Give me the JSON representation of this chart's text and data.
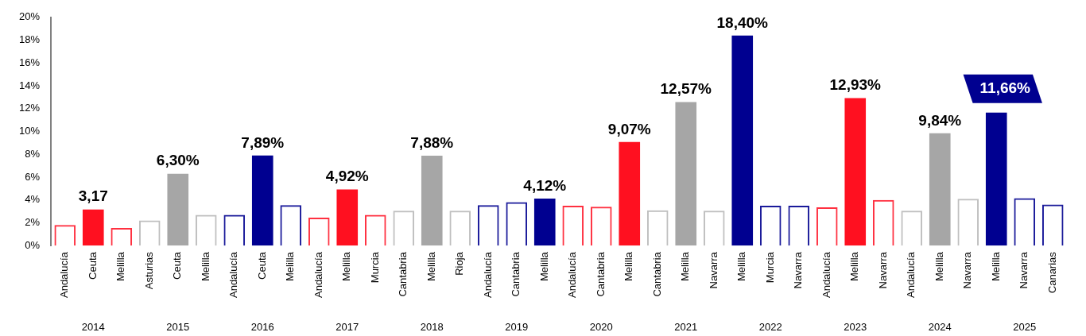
{
  "chart_data": {
    "type": "bar",
    "stacked": true,
    "categories": [
      "Andalucía",
      "Ceuta",
      "Melilla",
      "Asturias",
      "Ceuta",
      "Melilla",
      "Andalucía",
      "Ceuta",
      "Melilla",
      "Andalucía",
      "Melilla",
      "Murcia",
      "Cantabria",
      "Melilla",
      "Rioja",
      "Andalucía",
      "Cantabria",
      "Melilla",
      "Andalucía",
      "Cantabria",
      "Melilla",
      "Cantabria",
      "Melilla",
      "Navarra",
      "Melilla",
      "Murcia",
      "Navarra",
      "Andalucía",
      "Melilla",
      "Navarra",
      "Andalucía",
      "Melilla",
      "Navarra",
      "Melilla",
      "Navarra",
      "Canarias"
    ],
    "series": [
      {
        "values": [
          null,
          3.17,
          null,
          null,
          6.3,
          null,
          null,
          7.89,
          null,
          null,
          4.92,
          null,
          null,
          7.88,
          null,
          null,
          null,
          4.12,
          null,
          null,
          9.07,
          null,
          12.57,
          null,
          18.4,
          null,
          null,
          null,
          12.93,
          null,
          null,
          9.84,
          null,
          11.66,
          null,
          null
        ],
        "colors": [
          "#ff1020",
          "#ff1020",
          "#ff1020",
          "#a6a6a6",
          "#a6a6a6",
          "#a6a6a6",
          "#000090",
          "#000090",
          "#000090",
          "#ff1020",
          "#ff1020",
          "#ff1020",
          "#a6a6a6",
          "#a6a6a6",
          "#a6a6a6",
          "#000090",
          "#000090",
          "#000090",
          "#ff1020",
          "#ff1020",
          "#ff1020",
          "#a6a6a6",
          "#a6a6a6",
          "#a6a6a6",
          "#000090",
          "#000090",
          "#000090",
          "#ff1020",
          "#ff1020",
          "#ff1020",
          "#a6a6a6",
          "#a6a6a6",
          "#a6a6a6",
          "#000090",
          "#000090",
          "#000090"
        ],
        "value_labels": [
          null,
          "3,17",
          null,
          null,
          "6,30%",
          null,
          null,
          "7,89%",
          null,
          null,
          "4,92%",
          null,
          null,
          "7,88%",
          null,
          null,
          null,
          "4,12%",
          null,
          null,
          "9,07%",
          null,
          "12,57%",
          null,
          "18,40%",
          null,
          null,
          null,
          "12,93%",
          null,
          null,
          "9,84%",
          null,
          "11,66%",
          null,
          null
        ]
      },
      {
        "values": [
          1.8,
          null,
          1.55,
          2.2,
          null,
          2.7,
          2.7,
          null,
          3.55,
          2.45,
          null,
          2.7,
          3.05,
          null,
          3.05,
          3.55,
          3.8,
          null,
          3.5,
          3.4,
          null,
          3.1,
          null,
          3.05,
          null,
          3.5,
          3.5,
          3.35,
          null,
          4.0,
          3.05,
          null,
          4.1,
          null,
          4.15,
          3.6
        ],
        "colors": [
          "#ff3040",
          "#ff3040",
          "#ff3040",
          "#bfbfbf",
          "#bfbfbf",
          "#bfbfbf",
          "#1a1a9a",
          "#1a1a9a",
          "#1a1a9a",
          "#ff3040",
          "#ff3040",
          "#ff3040",
          "#bfbfbf",
          "#bfbfbf",
          "#bfbfbf",
          "#1a1a9a",
          "#1a1a9a",
          "#1a1a9a",
          "#ff3040",
          "#ff3040",
          "#ff3040",
          "#bfbfbf",
          "#bfbfbf",
          "#bfbfbf",
          "#1a1a9a",
          "#1a1a9a",
          "#1a1a9a",
          "#ff3040",
          "#ff3040",
          "#ff3040",
          "#bfbfbf",
          "#bfbfbf",
          "#bfbfbf",
          "#1a1a9a",
          "#1a1a9a",
          "#1a1a9a"
        ]
      }
    ],
    "ylim": [
      0,
      20
    ],
    "yticks": [
      {
        "value": 0,
        "label": "0%"
      },
      {
        "value": 2,
        "label": "2%"
      },
      {
        "value": 4,
        "label": "4%"
      },
      {
        "value": 6,
        "label": "6%"
      },
      {
        "value": 8,
        "label": "8%"
      },
      {
        "value": 10,
        "label": "10%"
      },
      {
        "value": 12,
        "label": "12%"
      },
      {
        "value": 14,
        "label": "14%"
      },
      {
        "value": 16,
        "label": "16%"
      },
      {
        "value": 18,
        "label": "18%"
      },
      {
        "value": 20,
        "label": "20%"
      }
    ],
    "grid": false,
    "legend": false,
    "annotations": [
      "2014",
      "2015",
      "2016",
      "2017",
      "2018",
      "2019",
      "2020",
      "2021",
      "2022",
      "2023",
      "2024",
      "2025"
    ]
  }
}
